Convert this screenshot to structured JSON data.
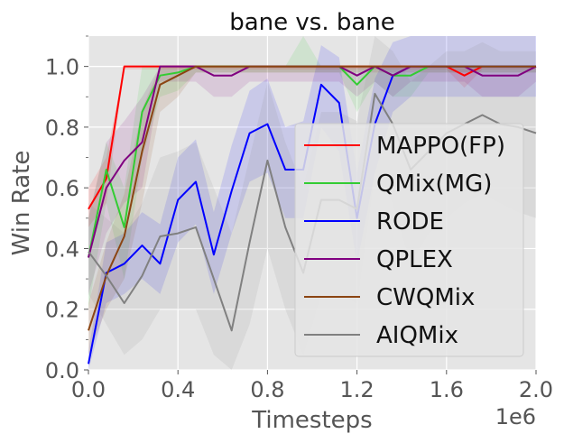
{
  "chart_data": {
    "type": "line",
    "title": "bane vs. bane",
    "xlabel": "Timesteps",
    "ylabel": "Win Rate",
    "x_offset_label": "1e6",
    "xlim": [
      0.0,
      2.0
    ],
    "ylim": [
      0.0,
      1.1
    ],
    "xticks": [
      "0.0",
      "0.4",
      "0.8",
      "1.2",
      "1.6",
      "2.0"
    ],
    "yticks": [
      "0.0",
      "0.2",
      "0.4",
      "0.6",
      "0.8",
      "1.0"
    ],
    "grid": true,
    "legend_position": "center-right",
    "colors": {
      "background": "#e5e5e5",
      "grid": "#ffffff"
    },
    "series": [
      {
        "name": "MAPPO(FP)",
        "color": "#ff0000",
        "x": [
          0.0,
          0.08,
          0.16,
          0.24,
          0.32,
          0.4,
          0.48,
          0.56,
          0.64,
          0.72,
          0.8,
          0.88,
          0.96,
          1.04,
          1.12,
          1.2,
          1.28,
          1.36,
          1.44,
          1.52,
          1.6,
          1.68,
          1.76,
          1.84,
          1.92,
          2.0
        ],
        "y": [
          0.53,
          0.63,
          1.0,
          1.0,
          1.0,
          1.0,
          1.0,
          1.0,
          1.0,
          1.0,
          1.0,
          1.0,
          1.0,
          1.0,
          1.0,
          1.0,
          1.0,
          1.0,
          1.0,
          1.0,
          1.0,
          0.97,
          1.0,
          1.0,
          1.0,
          1.0
        ],
        "lower": [
          0.47,
          0.55,
          0.99,
          0.99,
          0.99,
          0.99,
          0.99,
          0.99,
          0.99,
          0.99,
          0.99,
          0.99,
          0.99,
          0.99,
          0.99,
          0.99,
          0.99,
          0.99,
          0.99,
          0.99,
          0.99,
          0.93,
          0.99,
          0.99,
          0.99,
          0.99
        ],
        "upper": [
          0.6,
          0.7,
          1.0,
          1.0,
          1.0,
          1.0,
          1.0,
          1.0,
          1.0,
          1.0,
          1.0,
          1.0,
          1.0,
          1.0,
          1.0,
          1.0,
          1.0,
          1.0,
          1.0,
          1.0,
          1.0,
          1.0,
          1.0,
          1.0,
          1.0,
          1.0
        ]
      },
      {
        "name": "QMix(MG)",
        "color": "#33cc33",
        "x": [
          0.0,
          0.08,
          0.16,
          0.24,
          0.32,
          0.4,
          0.48,
          0.56,
          0.64,
          0.72,
          0.8,
          0.88,
          0.96,
          1.04,
          1.12,
          1.2,
          1.28,
          1.36,
          1.44,
          1.52,
          1.6,
          1.68,
          1.76,
          1.84,
          1.92,
          2.0
        ],
        "y": [
          0.37,
          0.66,
          0.47,
          0.85,
          0.97,
          0.98,
          1.0,
          1.0,
          1.0,
          1.0,
          1.0,
          1.0,
          1.0,
          1.0,
          1.0,
          0.94,
          1.0,
          0.97,
          0.97,
          1.0,
          1.0,
          1.0,
          1.0,
          1.0,
          1.0,
          1.0
        ],
        "lower": [
          0.2,
          0.55,
          0.3,
          0.7,
          0.9,
          0.92,
          0.98,
          0.98,
          0.98,
          0.98,
          0.98,
          0.98,
          0.98,
          0.98,
          0.98,
          0.85,
          0.95,
          0.9,
          0.9,
          0.98,
          0.98,
          0.98,
          0.98,
          0.98,
          0.98,
          0.98
        ],
        "upper": [
          0.5,
          0.75,
          0.6,
          1.0,
          1.0,
          1.0,
          1.0,
          1.0,
          1.0,
          1.0,
          1.0,
          1.0,
          1.1,
          1.0,
          1.0,
          1.0,
          1.0,
          1.0,
          1.0,
          1.0,
          1.0,
          1.0,
          1.0,
          1.0,
          1.0,
          1.0
        ]
      },
      {
        "name": "RODE",
        "color": "#0000ff",
        "x": [
          0.0,
          0.08,
          0.16,
          0.24,
          0.32,
          0.4,
          0.48,
          0.56,
          0.64,
          0.72,
          0.8,
          0.88,
          0.96,
          1.04,
          1.12,
          1.2,
          1.28,
          1.36,
          1.44,
          1.52,
          1.6,
          1.68,
          1.76,
          1.84,
          1.92,
          2.0
        ],
        "y": [
          0.02,
          0.32,
          0.35,
          0.41,
          0.35,
          0.56,
          0.62,
          0.38,
          0.59,
          0.78,
          0.81,
          0.66,
          0.66,
          0.94,
          0.88,
          0.5,
          0.81,
          0.97,
          1.0,
          1.0,
          1.0,
          1.0,
          1.0,
          1.0,
          1.0,
          1.0
        ],
        "lower": [
          0.0,
          0.22,
          0.25,
          0.3,
          0.25,
          0.42,
          0.48,
          0.25,
          0.45,
          0.62,
          0.65,
          0.5,
          0.5,
          0.8,
          0.72,
          0.35,
          0.65,
          0.85,
          0.9,
          0.9,
          0.9,
          0.9,
          0.9,
          0.9,
          0.9,
          0.9
        ],
        "upper": [
          0.06,
          0.42,
          0.45,
          0.52,
          0.48,
          0.7,
          0.76,
          0.52,
          0.74,
          0.92,
          0.96,
          0.8,
          0.82,
          1.07,
          1.03,
          0.65,
          0.96,
          1.08,
          1.1,
          1.1,
          1.1,
          1.1,
          1.1,
          1.1,
          1.1,
          1.1
        ]
      },
      {
        "name": "QPLEX",
        "color": "#800080",
        "x": [
          0.0,
          0.08,
          0.16,
          0.24,
          0.32,
          0.4,
          0.48,
          0.56,
          0.64,
          0.72,
          0.8,
          0.88,
          0.96,
          1.04,
          1.12,
          1.2,
          1.28,
          1.36,
          1.44,
          1.52,
          1.6,
          1.68,
          1.76,
          1.84,
          1.92,
          2.0
        ],
        "y": [
          0.37,
          0.6,
          0.69,
          0.75,
          1.0,
          1.0,
          1.0,
          0.97,
          0.97,
          1.0,
          1.0,
          1.0,
          1.0,
          1.0,
          1.0,
          0.97,
          1.0,
          0.97,
          1.0,
          1.0,
          1.0,
          1.0,
          0.97,
          0.97,
          0.97,
          1.0
        ],
        "lower": [
          0.25,
          0.45,
          0.55,
          0.6,
          0.95,
          0.95,
          0.95,
          0.9,
          0.9,
          0.95,
          0.95,
          0.95,
          0.95,
          0.95,
          0.95,
          0.9,
          0.95,
          0.9,
          0.95,
          0.95,
          0.95,
          0.95,
          0.9,
          0.9,
          0.9,
          0.95
        ],
        "upper": [
          0.5,
          0.75,
          0.82,
          0.9,
          1.0,
          1.0,
          1.0,
          1.0,
          1.0,
          1.0,
          1.0,
          1.0,
          1.0,
          1.0,
          1.0,
          1.0,
          1.0,
          1.0,
          1.0,
          1.0,
          1.0,
          1.0,
          1.0,
          1.0,
          1.0,
          1.0
        ]
      },
      {
        "name": "CWQMix",
        "color": "#8b4513",
        "x": [
          0.0,
          0.08,
          0.16,
          0.24,
          0.32,
          0.4,
          0.48,
          0.56,
          0.64,
          0.72,
          0.8,
          0.88,
          0.96,
          1.04,
          1.12,
          1.2,
          1.28,
          1.36,
          1.44,
          1.52,
          1.6,
          1.68,
          1.76,
          1.84,
          1.92,
          2.0
        ],
        "y": [
          0.13,
          0.31,
          0.44,
          0.72,
          0.94,
          0.97,
          1.0,
          1.0,
          1.0,
          1.0,
          1.0,
          1.0,
          1.0,
          1.0,
          1.0,
          1.0,
          1.0,
          1.0,
          1.0,
          1.0,
          1.0,
          1.0,
          1.0,
          1.0,
          1.0,
          1.0
        ],
        "lower": [
          0.05,
          0.2,
          0.3,
          0.55,
          0.85,
          0.9,
          0.98,
          0.98,
          0.98,
          0.98,
          0.98,
          0.98,
          0.98,
          0.98,
          0.98,
          0.98,
          0.98,
          0.98,
          0.98,
          0.98,
          0.98,
          0.98,
          0.98,
          0.98,
          0.98,
          0.98
        ],
        "upper": [
          0.22,
          0.42,
          0.58,
          0.86,
          1.0,
          1.0,
          1.0,
          1.0,
          1.0,
          1.0,
          1.0,
          1.0,
          1.0,
          1.0,
          1.0,
          1.0,
          1.0,
          1.0,
          1.0,
          1.0,
          1.0,
          1.0,
          1.0,
          1.0,
          1.0,
          1.0
        ]
      },
      {
        "name": "AIQMix",
        "color": "#808080",
        "x": [
          0.0,
          0.08,
          0.16,
          0.24,
          0.32,
          0.4,
          0.48,
          0.56,
          0.64,
          0.72,
          0.8,
          0.88,
          0.96,
          1.04,
          1.12,
          1.2,
          1.28,
          1.36,
          1.44,
          1.52,
          1.6,
          1.68,
          1.76,
          1.84,
          1.92,
          2.0
        ],
        "y": [
          0.39,
          0.31,
          0.22,
          0.31,
          0.44,
          0.45,
          0.47,
          0.3,
          0.13,
          0.42,
          0.69,
          0.47,
          0.32,
          0.56,
          0.56,
          0.53,
          0.91,
          0.81,
          0.66,
          0.72,
          0.78,
          0.81,
          0.84,
          0.81,
          0.8,
          0.78
        ],
        "lower": [
          0.25,
          0.15,
          0.05,
          0.1,
          0.2,
          0.2,
          0.2,
          0.05,
          0.0,
          0.15,
          0.4,
          0.2,
          0.05,
          0.25,
          0.25,
          0.22,
          0.65,
          0.55,
          0.35,
          0.45,
          0.5,
          0.55,
          0.58,
          0.55,
          0.52,
          0.5
        ],
        "upper": [
          0.55,
          0.5,
          0.45,
          0.55,
          0.7,
          0.72,
          0.75,
          0.6,
          0.45,
          0.7,
          0.95,
          0.75,
          0.6,
          0.85,
          0.85,
          0.82,
          1.1,
          1.05,
          0.95,
          1.0,
          1.05,
          1.05,
          1.08,
          1.05,
          1.05,
          1.05
        ]
      }
    ]
  }
}
